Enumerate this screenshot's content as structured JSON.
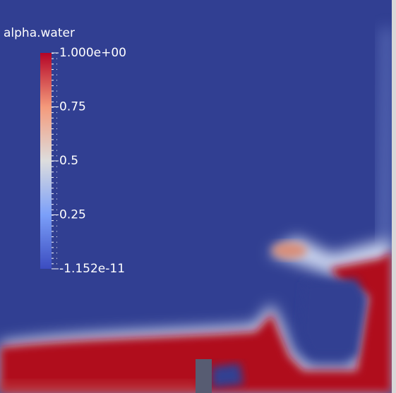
{
  "colorbar": {
    "title": "alpha.water",
    "ticks": [
      {
        "value": 1,
        "label": "1.000e+00"
      },
      0.75,
      0.5,
      0.25,
      {
        "value": -1.152e-11,
        "label": "-1.152e-11"
      }
    ]
  }
}
